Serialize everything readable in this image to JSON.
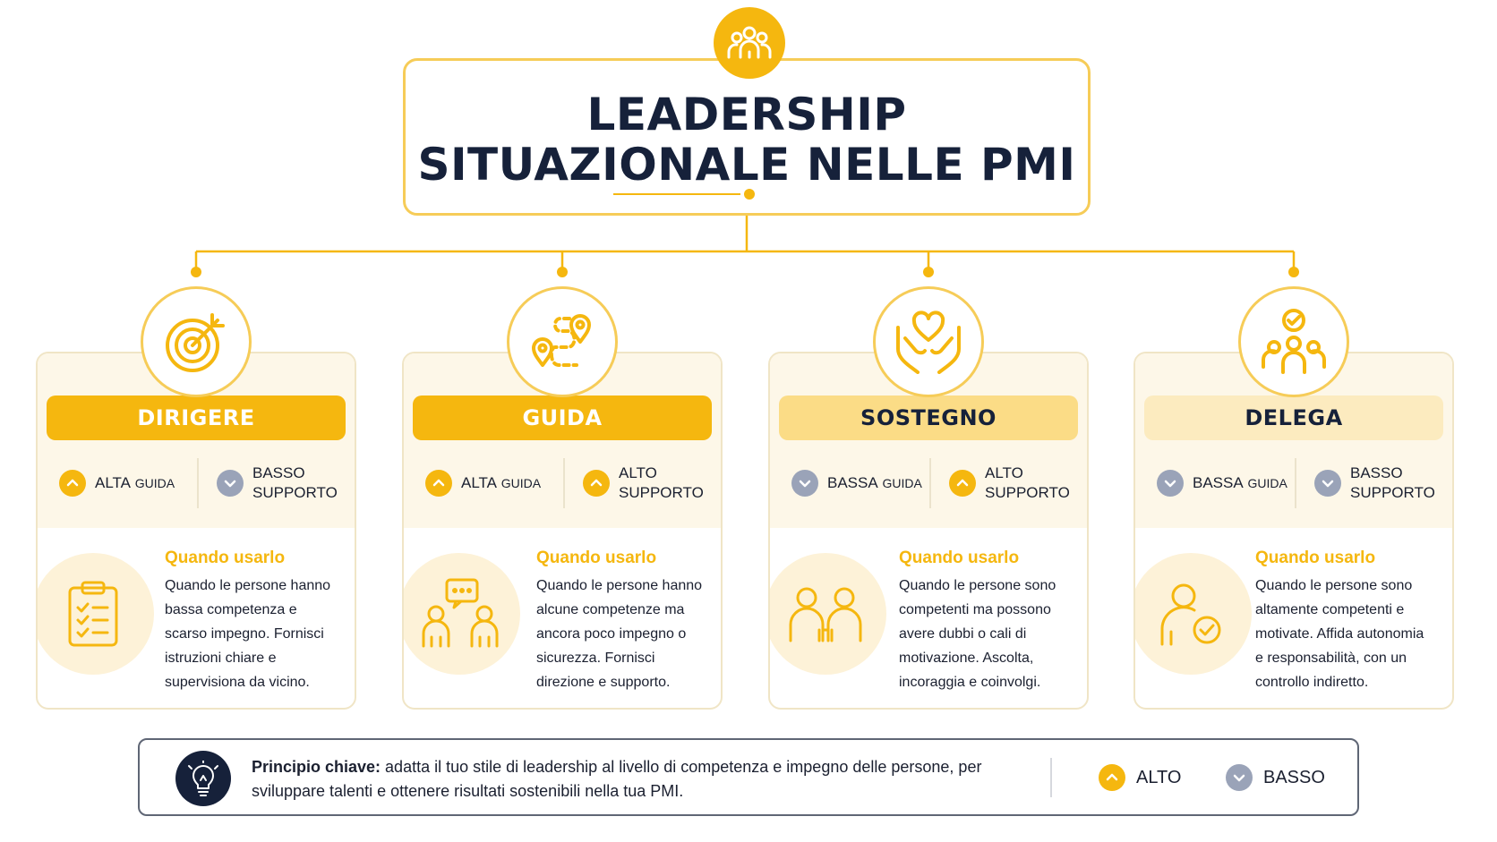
{
  "header": {
    "title_line1": "LEADERSHIP",
    "title_line2": "SITUAZIONALE NELLE PMI",
    "icon": "team-icon"
  },
  "colors": {
    "accent": "#f5b70f",
    "accent_light": "#fcebbf",
    "navy": "#16213a",
    "muted": "#9aa3b8"
  },
  "styles": [
    {
      "name": "DIRIGERE",
      "icon": "target-icon",
      "usage_icon": "clipboard-checklist-icon",
      "guidance": {
        "level": "ALTA",
        "word": "GUIDA",
        "direction": "up"
      },
      "support": {
        "line1": "BASSO",
        "line2": "SUPPORTO",
        "direction": "down"
      },
      "when_title": "Quando usarlo",
      "when_body": "Quando le persone hanno bassa competenza e scarso impegno. Fornisci istruzioni chiare e supervisiona da vicino."
    },
    {
      "name": "GUIDA",
      "icon": "route-map-icon",
      "usage_icon": "people-chat-icon",
      "guidance": {
        "level": "ALTA",
        "word": "GUIDA",
        "direction": "up"
      },
      "support": {
        "line1": "ALTO",
        "line2": "SUPPORTO",
        "direction": "up"
      },
      "when_title": "Quando usarlo",
      "when_body": "Quando le persone hanno alcune competenze ma ancora poco impegno o sicurezza. Fornisci direzione e supporto."
    },
    {
      "name": "SOSTEGNO",
      "icon": "hands-heart-icon",
      "usage_icon": "two-people-icon",
      "guidance": {
        "level": "BASSA",
        "word": "GUIDA",
        "direction": "down"
      },
      "support": {
        "line1": "ALTO",
        "line2": "SUPPORTO",
        "direction": "up"
      },
      "when_title": "Quando usarlo",
      "when_body": "Quando le persone sono competenti ma possono avere dubbi o cali di motivazione. Ascolta, incoraggia e coinvolgi."
    },
    {
      "name": "DELEGA",
      "icon": "team-check-icon",
      "usage_icon": "person-check-icon",
      "guidance": {
        "level": "BASSA",
        "word": "GUIDA",
        "direction": "down"
      },
      "support": {
        "line1": "BASSO",
        "line2": "SUPPORTO",
        "direction": "down"
      },
      "when_title": "Quando usarlo",
      "when_body": "Quando le persone sono altamente competenti e motivate. Affida autonomia e responsabilità, con un controllo indiretto."
    }
  ],
  "footer": {
    "principle_label": "Principio chiave:",
    "principle_text": " adatta il tuo stile di leadership al livello di competenza e impegno delle persone, per sviluppare talenti e ottenere risultati sostenibili nella tua PMI.",
    "legend": [
      {
        "label": "ALTO",
        "direction": "up"
      },
      {
        "label": "BASSO",
        "direction": "down"
      }
    ]
  }
}
